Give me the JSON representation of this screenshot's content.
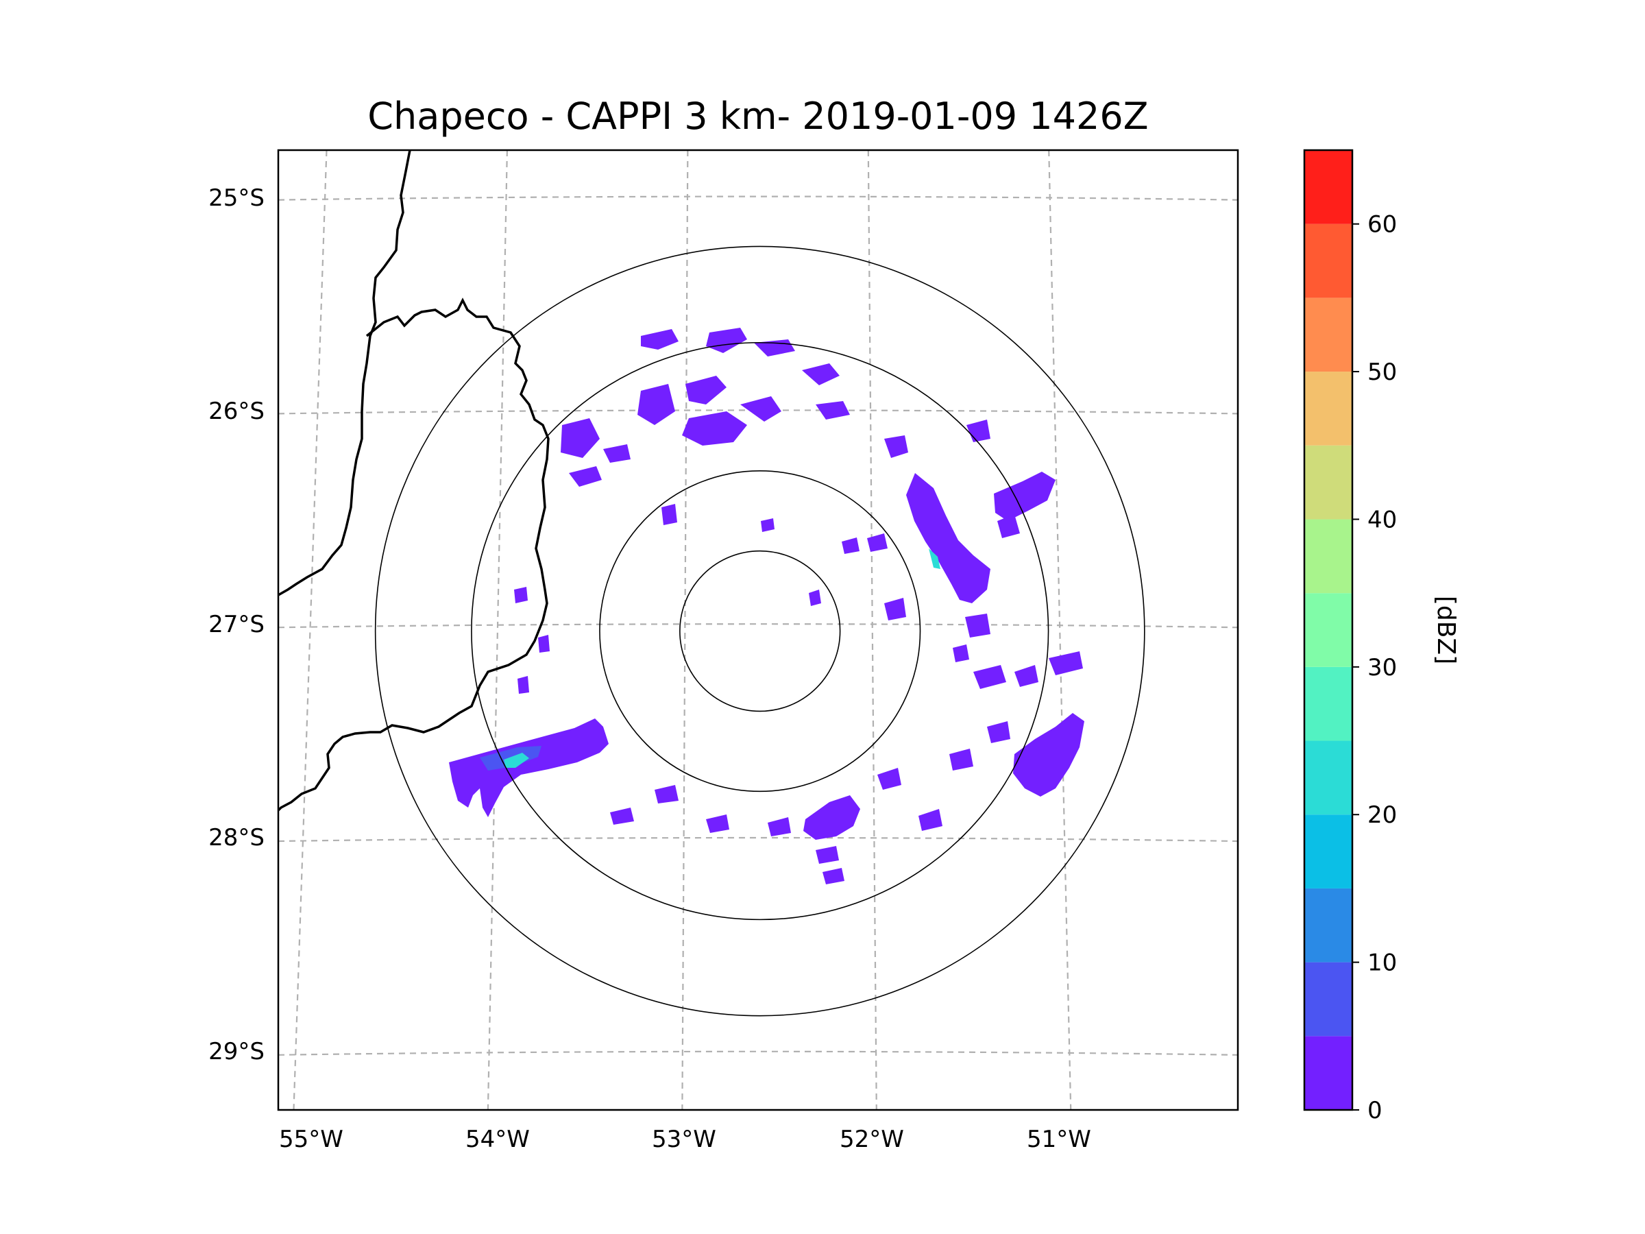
{
  "title": "Chapeco - CAPPI 3 km- 2019-01-09 1426Z",
  "map": {
    "lon_range": [
      -55.17,
      -50.05
    ],
    "lat_range": [
      -29.27,
      -24.78
    ],
    "lat_ticks": [
      {
        "value": -25,
        "label": "25°S"
      },
      {
        "value": -26,
        "label": "26°S"
      },
      {
        "value": -27,
        "label": "27°S"
      },
      {
        "value": -28,
        "label": "28°S"
      },
      {
        "value": -29,
        "label": "29°S"
      }
    ],
    "lon_ticks": [
      {
        "value": -55,
        "label": "55°W"
      },
      {
        "value": -54,
        "label": "54°W"
      },
      {
        "value": -53,
        "label": "53°W"
      },
      {
        "value": -52,
        "label": "52°W"
      },
      {
        "value": -51,
        "label": "51°W"
      }
    ],
    "radar_center": {
      "lon": -52.6,
      "lat": -27.03
    },
    "range_rings_deg": [
      0.45,
      0.9,
      1.62,
      2.16
    ],
    "gridline_color": "#b0b0b0",
    "border_color": "#000000",
    "echo_primary_color": "#7320ff"
  },
  "colorbar": {
    "label": "[dBZ]",
    "ticks": [
      {
        "value": 0,
        "label": "0"
      },
      {
        "value": 10,
        "label": "10"
      },
      {
        "value": 20,
        "label": "20"
      },
      {
        "value": 30,
        "label": "30"
      },
      {
        "value": 40,
        "label": "40"
      },
      {
        "value": 50,
        "label": "50"
      },
      {
        "value": 60,
        "label": "60"
      }
    ],
    "bins": [
      {
        "from": 0,
        "to": 5,
        "color": "#7320ff"
      },
      {
        "from": 5,
        "to": 10,
        "color": "#4b55f2"
      },
      {
        "from": 10,
        "to": 15,
        "color": "#2a8ae6"
      },
      {
        "from": 15,
        "to": 20,
        "color": "#0bbfe6"
      },
      {
        "from": 20,
        "to": 25,
        "color": "#2bdcd6"
      },
      {
        "from": 25,
        "to": 30,
        "color": "#52f2c2"
      },
      {
        "from": 30,
        "to": 35,
        "color": "#80fca8"
      },
      {
        "from": 35,
        "to": 40,
        "color": "#a8f48c"
      },
      {
        "from": 40,
        "to": 45,
        "color": "#cfdc7a"
      },
      {
        "from": 45,
        "to": 50,
        "color": "#f3c06c"
      },
      {
        "from": 50,
        "to": 55,
        "color": "#ff8c4f"
      },
      {
        "from": 55,
        "to": 60,
        "color": "#ff5a32"
      },
      {
        "from": 60,
        "to": 65,
        "color": "#ff1f1a"
      }
    ]
  }
}
